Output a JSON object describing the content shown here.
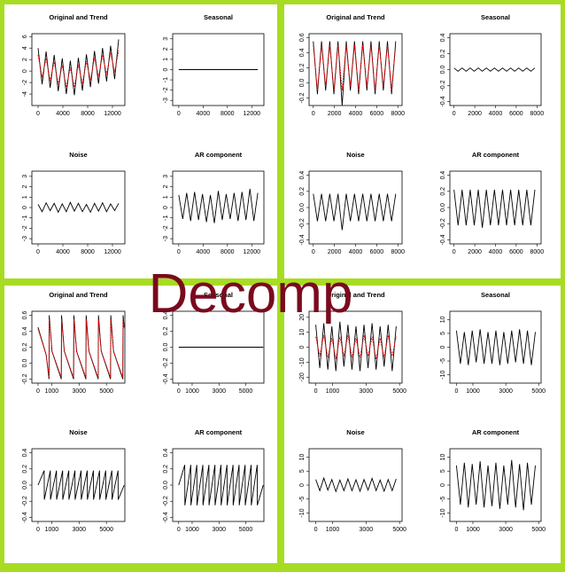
{
  "overlay_text": "Decomp",
  "chart_data": [
    {
      "type": "line",
      "title": "Original and Trend",
      "xlim": [
        -1000,
        14000
      ],
      "xticks": [
        0,
        4000,
        8000,
        12000
      ],
      "ylim": [
        -6,
        6.5
      ],
      "yticks": [
        -4,
        -2,
        0,
        2,
        4,
        6
      ],
      "x": [
        0,
        650,
        1300,
        1950,
        2600,
        3250,
        3900,
        4550,
        5200,
        5850,
        6500,
        7150,
        7800,
        8450,
        9100,
        9750,
        10400,
        11050,
        11700,
        12350,
        13000
      ],
      "series": [
        {
          "color": "#000000",
          "values": [
            4,
            -2.3,
            3.4,
            -2.9,
            2.8,
            -3.5,
            2.2,
            -4,
            1.8,
            -4.2,
            2.3,
            -3.4,
            2.9,
            -2.8,
            3.5,
            -2.2,
            4,
            -1.8,
            4.4,
            -1.4,
            5.5
          ]
        },
        {
          "color": "#ff0000",
          "dashed": true,
          "values": [
            2.8,
            -1.1,
            2.2,
            -1.7,
            1.6,
            -2.3,
            1,
            -2.8,
            0.6,
            -2.8,
            1.1,
            -2.2,
            1.7,
            -1.6,
            2.3,
            -1,
            2.8,
            -0.6,
            3.2,
            -0.2,
            3.6
          ]
        }
      ]
    },
    {
      "type": "line",
      "title": "Seasonal",
      "xlim": [
        -1000,
        14000
      ],
      "xticks": [
        0,
        4000,
        8000,
        12000
      ],
      "ylim": [
        -3.5,
        3.5
      ],
      "yticks": [
        -3,
        -2,
        -1,
        0,
        1,
        2,
        3
      ],
      "x": [
        0,
        13000
      ],
      "series": [
        {
          "color": "#000000",
          "values": [
            0,
            0
          ]
        }
      ]
    },
    {
      "type": "line",
      "title": "Noise",
      "xlim": [
        -1000,
        14000
      ],
      "xticks": [
        0,
        4000,
        8000,
        12000
      ],
      "ylim": [
        -3.5,
        3.5
      ],
      "yticks": [
        -3,
        -2,
        -1,
        0,
        1,
        2,
        3
      ],
      "x": [
        0,
        650,
        1300,
        1950,
        2600,
        3250,
        3900,
        4550,
        5200,
        5850,
        6500,
        7150,
        7800,
        8450,
        9100,
        9750,
        10400,
        11050,
        11700,
        12350,
        13000
      ],
      "series": [
        {
          "color": "#000000",
          "values": [
            0.3,
            -0.4,
            0.45,
            -0.3,
            0.4,
            -0.45,
            0.35,
            -0.4,
            0.5,
            -0.35,
            0.4,
            -0.4,
            0.3,
            -0.45,
            0.4,
            -0.35,
            0.45,
            -0.4,
            0.35,
            -0.3,
            0.4
          ]
        }
      ]
    },
    {
      "type": "line",
      "title": "AR component",
      "xlim": [
        -1000,
        14000
      ],
      "xticks": [
        0,
        4000,
        8000,
        12000
      ],
      "ylim": [
        -3.5,
        3.5
      ],
      "yticks": [
        -3,
        -2,
        -1,
        0,
        1,
        2,
        3
      ],
      "x": [
        0,
        650,
        1300,
        1950,
        2600,
        3250,
        3900,
        4550,
        5200,
        5850,
        6500,
        7150,
        7800,
        8450,
        9100,
        9750,
        10400,
        11050,
        11700,
        12350,
        13000
      ],
      "series": [
        {
          "color": "#000000",
          "values": [
            1.2,
            -1.1,
            1.4,
            -1.3,
            1.5,
            -1.2,
            1.3,
            -1.4,
            1.2,
            -1.5,
            1.6,
            -1.2,
            1.3,
            -1.1,
            1.4,
            -1.3,
            1.5,
            -1.2,
            1.8,
            -1.3,
            1.4
          ]
        }
      ]
    },
    {
      "type": "line",
      "title": "Original and Trend",
      "xlim": [
        -400,
        8400
      ],
      "xticks": [
        0,
        2000,
        4000,
        6000,
        8000
      ],
      "ylim": [
        -0.3,
        0.65
      ],
      "yticks": [
        -0.2,
        {
          "value": 0,
          "label": "0.0"
        },
        0.2,
        0.4,
        0.6
      ],
      "x": [
        0,
        390,
        780,
        1170,
        1560,
        1950,
        2340,
        2730,
        3120,
        3510,
        3900,
        4290,
        4680,
        5070,
        5460,
        5850,
        6240,
        6630,
        7020,
        7410,
        7800
      ],
      "series": [
        {
          "color": "#000000",
          "values": [
            0.55,
            -0.15,
            0.55,
            -0.1,
            0.55,
            -0.15,
            0.55,
            -0.3,
            0.55,
            -0.1,
            0.55,
            -0.15,
            0.55,
            -0.1,
            0.55,
            -0.15,
            0.55,
            -0.1,
            0.55,
            -0.15,
            0.55
          ]
        },
        {
          "color": "#ff0000",
          "dashed": true,
          "values": [
            0.5,
            -0.1,
            0.5,
            -0.05,
            0.5,
            -0.1,
            0.5,
            -0.1,
            0.5,
            -0.05,
            0.5,
            -0.1,
            0.5,
            -0.05,
            0.5,
            -0.1,
            0.5,
            -0.05,
            0.5,
            -0.1,
            0.5
          ]
        }
      ]
    },
    {
      "type": "line",
      "title": "Seasonal",
      "xlim": [
        -400,
        8400
      ],
      "xticks": [
        0,
        2000,
        4000,
        6000,
        8000
      ],
      "ylim": [
        -0.45,
        0.45
      ],
      "yticks": [
        -0.4,
        -0.2,
        {
          "value": 0,
          "label": "0.0"
        },
        0.2,
        0.4
      ],
      "x": [
        0,
        390,
        780,
        1170,
        1560,
        1950,
        2340,
        2730,
        3120,
        3510,
        3900,
        4290,
        4680,
        5070,
        5460,
        5850,
        6240,
        6630,
        7020,
        7410,
        7800
      ],
      "series": [
        {
          "color": "#000000",
          "values": [
            0.02,
            -0.02,
            0.02,
            -0.02,
            0.02,
            -0.02,
            0.02,
            -0.02,
            0.02,
            -0.02,
            0.02,
            -0.02,
            0.02,
            -0.02,
            0.02,
            -0.02,
            0.02,
            -0.02,
            0.02,
            -0.02,
            0.02
          ]
        }
      ]
    },
    {
      "type": "line",
      "title": "Noise",
      "xlim": [
        -400,
        8400
      ],
      "xticks": [
        0,
        2000,
        4000,
        6000,
        8000
      ],
      "ylim": [
        -0.45,
        0.45
      ],
      "yticks": [
        -0.4,
        -0.2,
        {
          "value": 0,
          "label": "0.0"
        },
        0.2,
        0.4
      ],
      "x": [
        0,
        390,
        780,
        1170,
        1560,
        1950,
        2340,
        2730,
        3120,
        3510,
        3900,
        4290,
        4680,
        5070,
        5460,
        5850,
        6240,
        6630,
        7020,
        7410,
        7800
      ],
      "series": [
        {
          "color": "#000000",
          "values": [
            0.17,
            -0.17,
            0.17,
            -0.17,
            0.17,
            -0.17,
            0.17,
            -0.28,
            0.17,
            -0.17,
            0.17,
            -0.17,
            0.17,
            -0.17,
            0.17,
            -0.17,
            0.17,
            -0.17,
            0.17,
            -0.17,
            0.17
          ]
        }
      ]
    },
    {
      "type": "line",
      "title": "AR component",
      "xlim": [
        -400,
        8400
      ],
      "xticks": [
        0,
        2000,
        4000,
        6000,
        8000
      ],
      "ylim": [
        -0.45,
        0.45
      ],
      "yticks": [
        -0.4,
        -0.2,
        {
          "value": 0,
          "label": "0.0"
        },
        0.2,
        0.4
      ],
      "x": [
        0,
        390,
        780,
        1170,
        1560,
        1950,
        2340,
        2730,
        3120,
        3510,
        3900,
        4290,
        4680,
        5070,
        5460,
        5850,
        6240,
        6630,
        7020,
        7410,
        7800
      ],
      "series": [
        {
          "color": "#000000",
          "values": [
            0.22,
            -0.22,
            0.22,
            -0.22,
            0.22,
            -0.22,
            0.22,
            -0.25,
            0.22,
            -0.22,
            0.22,
            -0.22,
            0.22,
            -0.22,
            0.22,
            -0.22,
            0.22,
            -0.22,
            0.22,
            -0.22,
            0.22
          ]
        }
      ]
    },
    {
      "type": "line",
      "title": "Original and Trend",
      "xlim": [
        -450,
        6350
      ],
      "xticks": [
        0,
        1000,
        3000,
        5000
      ],
      "ylim": [
        -0.25,
        0.65
      ],
      "yticks": [
        -0.2,
        {
          "value": 0,
          "label": "0.0"
        },
        0.2,
        0.4,
        0.6
      ],
      "x": [
        0,
        600,
        800,
        820,
        1020,
        1700,
        1720,
        1920,
        2600,
        2620,
        2820,
        3500,
        3520,
        3720,
        4400,
        4420,
        4620,
        5300,
        5320,
        5520,
        6200,
        6220,
        6300
      ],
      "series": [
        {
          "color": "#000000",
          "values": [
            0.45,
            0.1,
            -0.2,
            0.6,
            0.15,
            -0.2,
            0.6,
            0.15,
            -0.2,
            0.6,
            0.15,
            -0.2,
            0.6,
            0.15,
            -0.2,
            0.6,
            0.15,
            -0.2,
            0.6,
            0.15,
            -0.2,
            0.6,
            0.45
          ]
        },
        {
          "color": "#ff0000",
          "dashed": true,
          "values": [
            0.43,
            0.1,
            -0.18,
            0.55,
            0.15,
            -0.18,
            0.55,
            0.15,
            -0.18,
            0.55,
            0.15,
            -0.18,
            0.55,
            0.15,
            -0.18,
            0.55,
            0.15,
            -0.18,
            0.55,
            0.15,
            -0.18,
            0.55,
            0.43
          ]
        }
      ]
    },
    {
      "type": "line",
      "title": "Seasonal",
      "xlim": [
        -450,
        6350
      ],
      "xticks": [
        0,
        1000,
        3000,
        5000
      ],
      "ylim": [
        -0.45,
        0.45
      ],
      "yticks": [
        -0.4,
        -0.2,
        {
          "value": 0,
          "label": "0.0"
        },
        0.2,
        0.4
      ],
      "x": [
        0,
        6300
      ],
      "series": [
        {
          "color": "#000000",
          "values": [
            0,
            0
          ]
        }
      ]
    },
    {
      "type": "line",
      "title": "Noise",
      "xlim": [
        -450,
        6350
      ],
      "xticks": [
        0,
        1000,
        3000,
        5000
      ],
      "ylim": [
        -0.45,
        0.45
      ],
      "yticks": [
        -0.4,
        -0.2,
        {
          "value": 0,
          "label": "0.0"
        },
        0.2,
        0.4
      ],
      "x": [
        0,
        450,
        460,
        900,
        910,
        1350,
        1360,
        1800,
        1810,
        2250,
        2260,
        2700,
        2710,
        3150,
        3160,
        3600,
        3610,
        4050,
        4060,
        4500,
        4510,
        4950,
        4960,
        5400,
        5410,
        5850,
        5860,
        6300
      ],
      "series": [
        {
          "color": "#000000",
          "values": [
            0,
            0.18,
            -0.18,
            0.18,
            -0.18,
            0.18,
            -0.18,
            0.18,
            -0.18,
            0.18,
            -0.18,
            0.18,
            -0.18,
            0.18,
            -0.18,
            0.18,
            -0.18,
            0.18,
            -0.18,
            0.18,
            -0.18,
            0.18,
            -0.18,
            0.18,
            -0.18,
            0.18,
            -0.18,
            0
          ]
        }
      ]
    },
    {
      "type": "line",
      "title": "AR component",
      "xlim": [
        -450,
        6350
      ],
      "xticks": [
        0,
        1000,
        3000,
        5000
      ],
      "ylim": [
        -0.45,
        0.45
      ],
      "yticks": [
        -0.4,
        -0.2,
        {
          "value": 0,
          "label": "0.0"
        },
        0.2,
        0.4
      ],
      "x": [
        0,
        450,
        460,
        900,
        910,
        1350,
        1360,
        1800,
        1810,
        2250,
        2260,
        2700,
        2710,
        3150,
        3160,
        3600,
        3610,
        4050,
        4060,
        4500,
        4510,
        4950,
        4960,
        5400,
        5410,
        5850,
        5860,
        6300
      ],
      "series": [
        {
          "color": "#000000",
          "values": [
            0,
            0.25,
            -0.25,
            0.25,
            -0.25,
            0.25,
            -0.25,
            0.25,
            -0.25,
            0.25,
            -0.25,
            0.25,
            -0.25,
            0.25,
            -0.25,
            0.25,
            -0.25,
            0.25,
            -0.25,
            0.25,
            -0.25,
            0.25,
            -0.25,
            0.25,
            -0.25,
            0.25,
            -0.25,
            0
          ]
        }
      ]
    },
    {
      "type": "line",
      "title": "Original and Trend",
      "xlim": [
        -400,
        5150
      ],
      "xticks": [
        0,
        1000,
        3000,
        5000
      ],
      "ylim": [
        -24,
        24
      ],
      "yticks": [
        -20,
        -10,
        0,
        10,
        20
      ],
      "x": [
        0,
        240,
        480,
        720,
        960,
        1200,
        1440,
        1680,
        1920,
        2160,
        2400,
        2640,
        2880,
        3120,
        3360,
        3600,
        3840,
        4080,
        4320,
        4560,
        4800
      ],
      "series": [
        {
          "color": "#000000",
          "values": [
            15,
            -14,
            16,
            -15,
            14,
            -16,
            17,
            -13,
            15,
            -15,
            14,
            -16,
            15,
            -14,
            16,
            -15,
            14,
            -13,
            15,
            -16,
            14
          ]
        },
        {
          "color": "#ff0000",
          "dashed": true,
          "values": [
            7,
            -6,
            8,
            -7,
            6,
            -8,
            7,
            -6,
            8,
            -7,
            6,
            -7,
            8,
            -6,
            7,
            -8,
            6,
            -7,
            8,
            -6,
            7
          ]
        }
      ]
    },
    {
      "type": "line",
      "title": "Seasonal",
      "xlim": [
        -400,
        5150
      ],
      "xticks": [
        0,
        1000,
        3000,
        5000
      ],
      "ylim": [
        -13,
        13
      ],
      "yticks": [
        -10,
        -5,
        0,
        5,
        10
      ],
      "x": [
        0,
        240,
        480,
        720,
        960,
        1200,
        1440,
        1680,
        1920,
        2160,
        2400,
        2640,
        2880,
        3120,
        3360,
        3600,
        3840,
        4080,
        4320,
        4560,
        4800
      ],
      "series": [
        {
          "color": "#000000",
          "values": [
            6,
            -6,
            5.5,
            -6.5,
            6,
            -5.5,
            6.5,
            -6,
            5.5,
            -6,
            6,
            -6.5,
            5.5,
            -6,
            6,
            -5.5,
            6.5,
            -6,
            6,
            -6.5,
            5.5
          ]
        }
      ]
    },
    {
      "type": "line",
      "title": "Noise",
      "xlim": [
        -400,
        5150
      ],
      "xticks": [
        0,
        1000,
        3000,
        5000
      ],
      "ylim": [
        -13,
        13
      ],
      "yticks": [
        -10,
        -5,
        0,
        5,
        10
      ],
      "x": [
        0,
        240,
        480,
        720,
        960,
        1200,
        1440,
        1680,
        1920,
        2160,
        2400,
        2640,
        2880,
        3120,
        3360,
        3600,
        3840,
        4080,
        4320,
        4560,
        4800
      ],
      "series": [
        {
          "color": "#000000",
          "values": [
            2,
            -2,
            2.5,
            -1.8,
            2,
            -2.3,
            1.8,
            -2,
            2.2,
            -2,
            1.9,
            -2.2,
            2,
            -1.8,
            2.4,
            -2,
            1.8,
            -2.2,
            2,
            -2,
            2.2
          ]
        }
      ]
    },
    {
      "type": "line",
      "title": "AR component",
      "xlim": [
        -400,
        5150
      ],
      "xticks": [
        0,
        1000,
        3000,
        5000
      ],
      "ylim": [
        -13,
        13
      ],
      "yticks": [
        -10,
        -5,
        0,
        5,
        10
      ],
      "x": [
        0,
        240,
        480,
        720,
        960,
        1200,
        1440,
        1680,
        1920,
        2160,
        2400,
        2640,
        2880,
        3120,
        3360,
        3600,
        3840,
        4080,
        4320,
        4560,
        4800
      ],
      "series": [
        {
          "color": "#000000",
          "values": [
            7,
            -7,
            8,
            -8,
            7.5,
            -7,
            8.5,
            -8,
            7,
            -7.5,
            8,
            -8.5,
            7,
            -7,
            9,
            -8,
            7.5,
            -9,
            8,
            -7,
            7
          ]
        }
      ]
    }
  ]
}
